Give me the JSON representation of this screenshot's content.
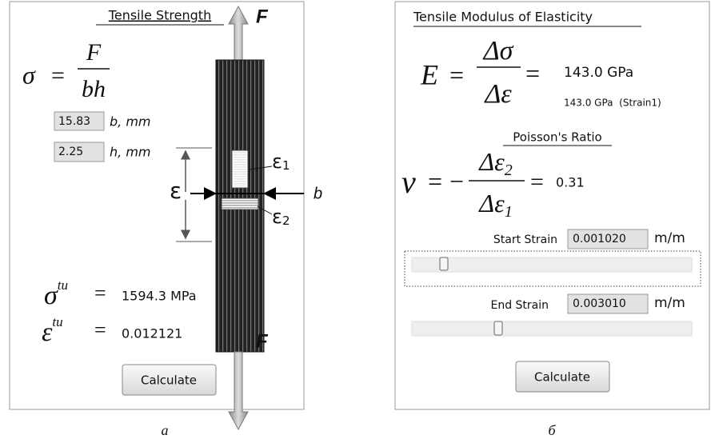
{
  "left": {
    "title": "Tensile Strength",
    "formula": {
      "lhs": "σ",
      "eq": "=",
      "num": "F",
      "den": "bh"
    },
    "inputs": [
      {
        "value": "15.83",
        "label": "b, mm"
      },
      {
        "value": "2.25",
        "label": "h, mm"
      }
    ],
    "diagram": {
      "force_top": "F",
      "force_bottom": "F",
      "strain": "ε",
      "gauge1": {
        "symbol": "ε",
        "sub": "1"
      },
      "gauge2": {
        "symbol": "ε",
        "sub": "2"
      },
      "width": "b"
    },
    "results": [
      {
        "symbol": "σ",
        "sup": "tu",
        "eq": "=",
        "value": "1594.3 MPa"
      },
      {
        "symbol": "ε",
        "sup": "tu",
        "eq": "=",
        "value": "0.012121"
      }
    ],
    "button": "Calculate",
    "caption": "а"
  },
  "right": {
    "title": "Tensile Modulus of Elasticity",
    "modulus": {
      "lhs": "E",
      "eq": "=",
      "num": "Δσ",
      "den": "Δε",
      "eq2": "=",
      "value": "143.0 GPa",
      "detail": "143.0 GPa  (Strain1)"
    },
    "poisson": {
      "title": "Poisson's Ratio",
      "lhs": "ν",
      "eq": "=",
      "sign": "−",
      "num": "Δε",
      "num_sub": "2",
      "den": "Δε",
      "den_sub": "1",
      "eq2": "=",
      "value": "0.31"
    },
    "start": {
      "label": "Start Strain",
      "value": "0.001020",
      "unit": "m/m"
    },
    "end": {
      "label": "End Strain",
      "value": "0.003010",
      "unit": "m/m"
    },
    "button": "Calculate",
    "caption": "б"
  }
}
